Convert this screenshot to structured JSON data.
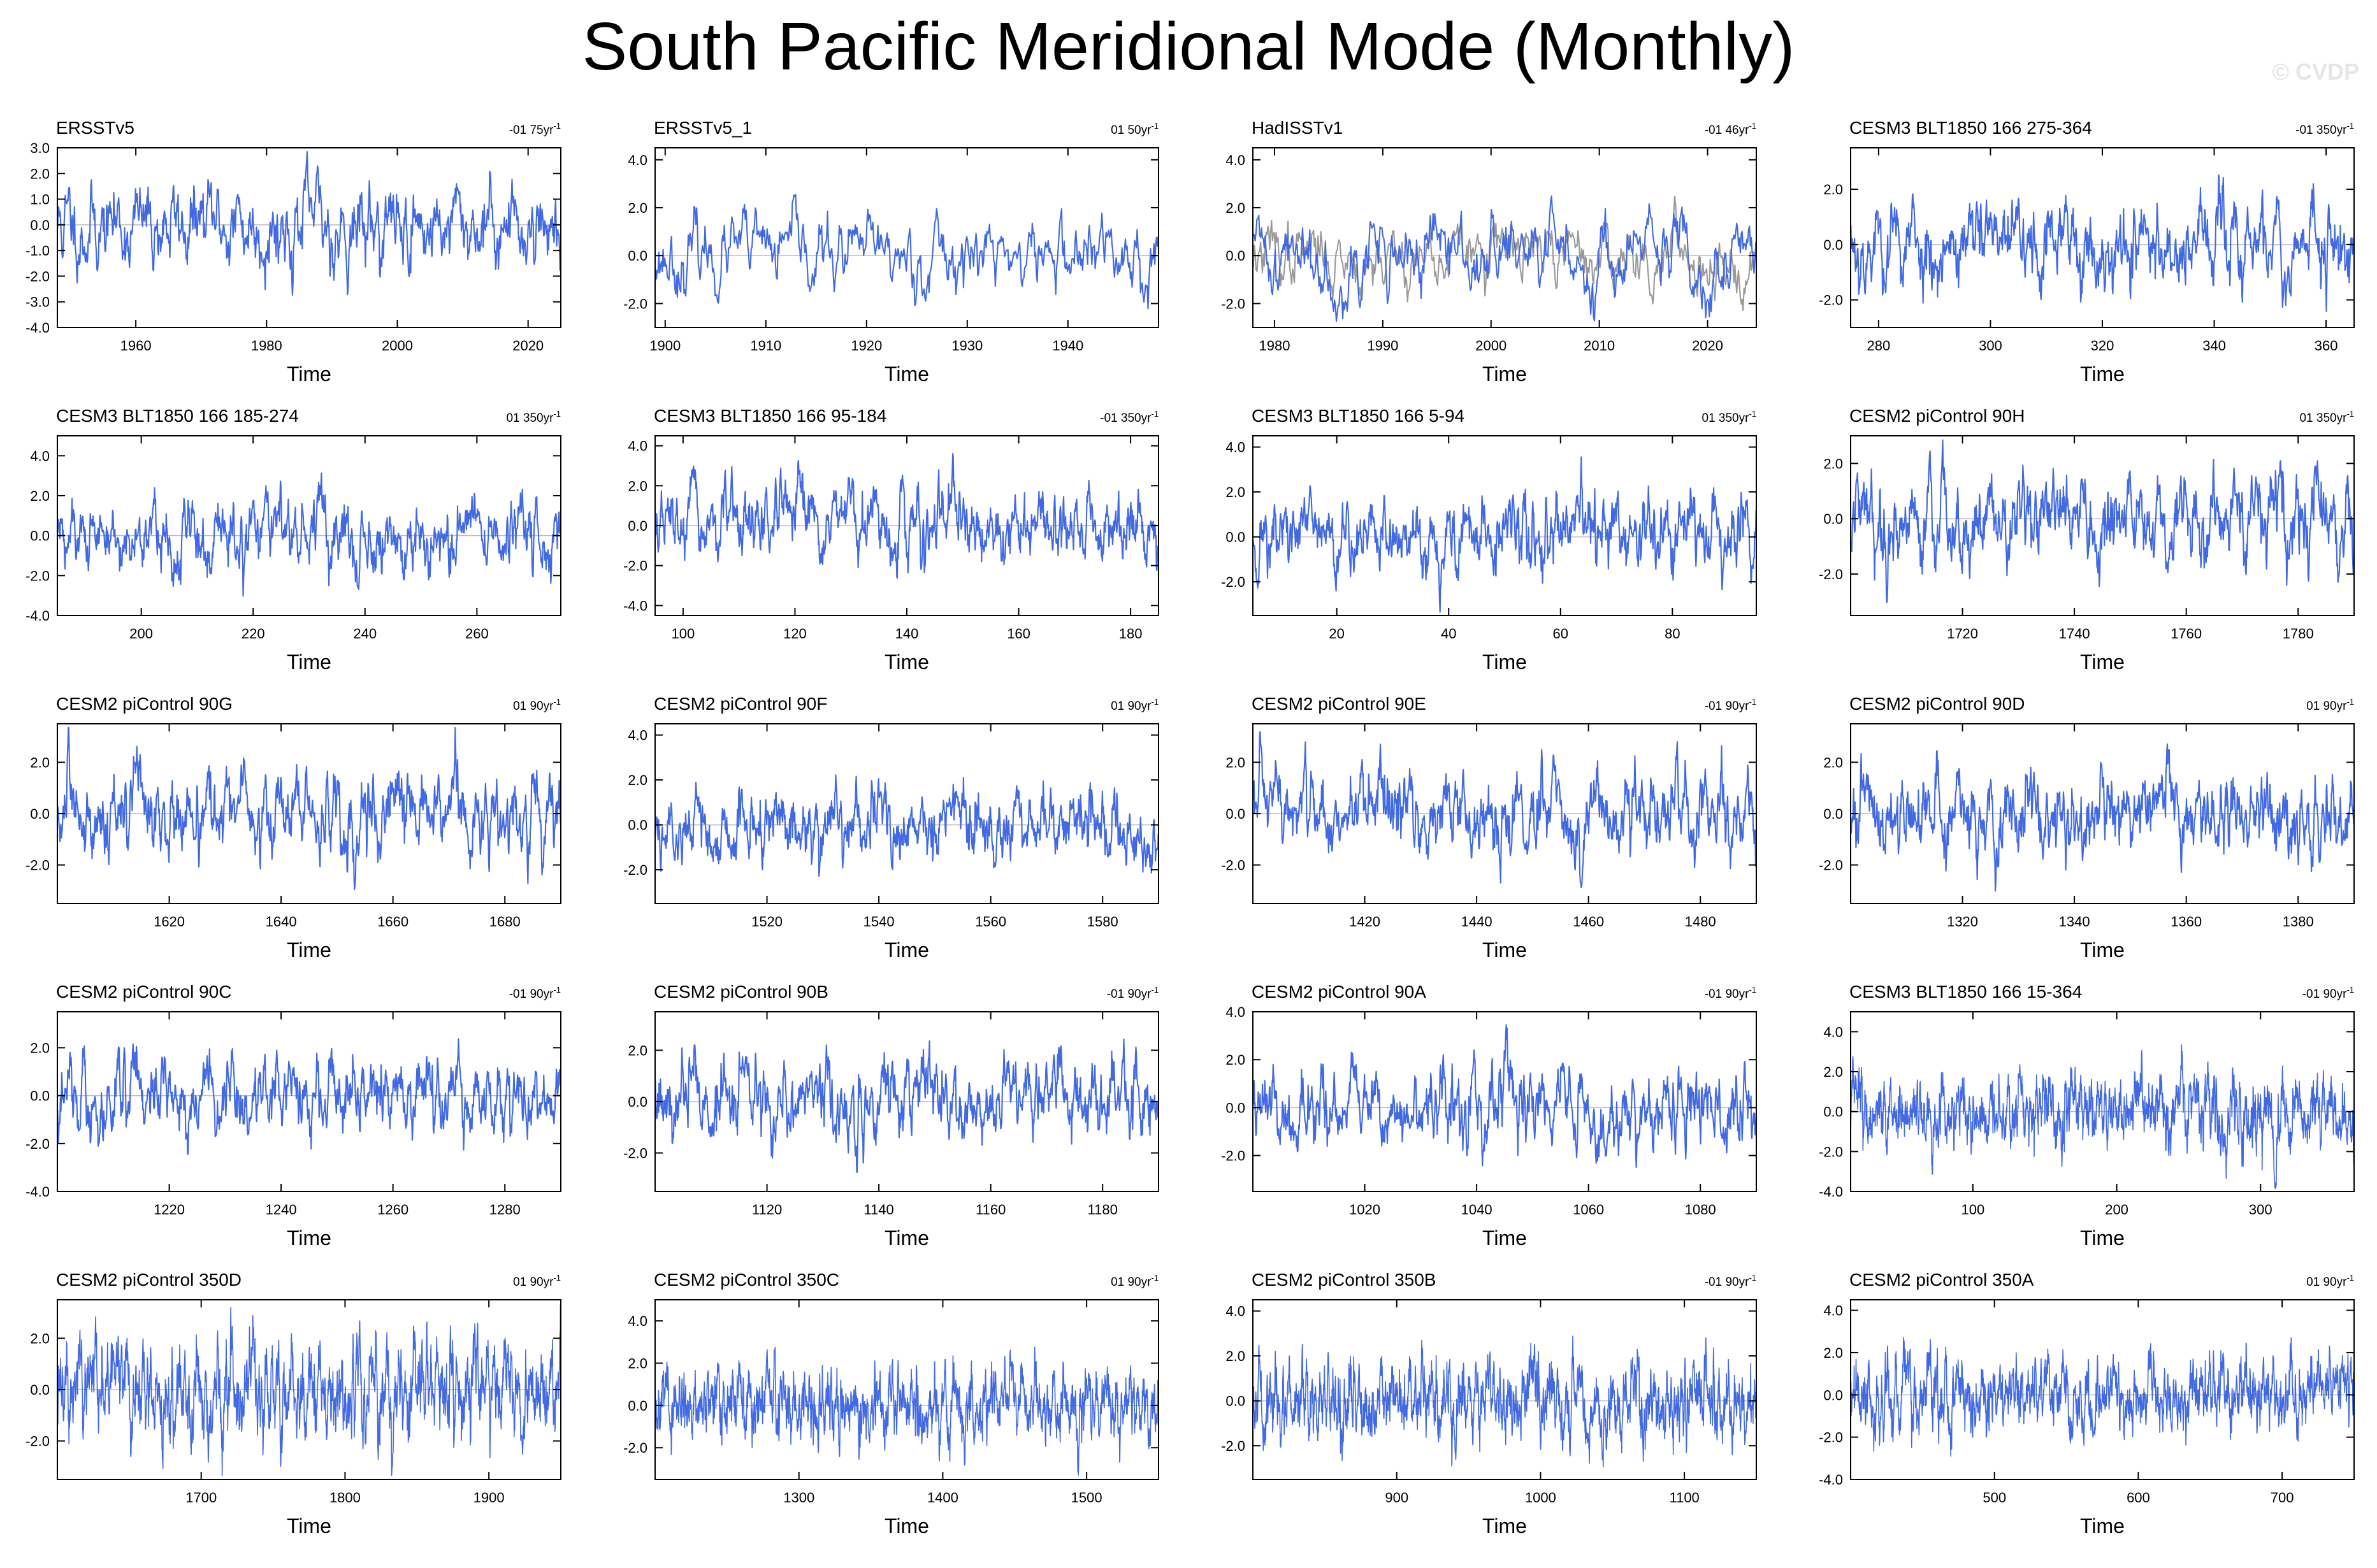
{
  "title": "South Pacific Meridional Mode (Monthly)",
  "credit": "© CVDP",
  "chart_data": [
    {
      "type": "line",
      "panel_title": "ERSSTv5",
      "trend": "-01 75yr",
      "xlabel": "Time",
      "xlim": [
        1948,
        2025
      ],
      "ylim": [
        -4,
        3
      ],
      "xticks": [
        1960,
        1980,
        2000,
        2020
      ],
      "xtick_labels": [
        "1960",
        "1980",
        "2000",
        "2020"
      ],
      "yticks": [
        -4,
        -3,
        -2,
        -1,
        0,
        1,
        2,
        3
      ],
      "ytick_labels": [
        "-4.0",
        "-3.0",
        "-2.0",
        "-1.0",
        "0.0",
        "1.0",
        "2.0",
        "3.0"
      ],
      "series": [
        {
          "color": "#4169e1",
          "amp": 0.95,
          "seed": 11,
          "months": 924
        }
      ]
    },
    {
      "type": "line",
      "panel_title": "ERSSTv5_1",
      "trend": "01 50yr",
      "xlabel": "Time",
      "xlim": [
        1899,
        1949
      ],
      "ylim": [
        -3,
        4.5
      ],
      "xticks": [
        1900,
        1910,
        1920,
        1930,
        1940
      ],
      "xtick_labels": [
        "1900",
        "1910",
        "1920",
        "1930",
        "1940"
      ],
      "yticks": [
        -2,
        0,
        2,
        4
      ],
      "ytick_labels": [
        "-2.0",
        "0.0",
        "2.0",
        "4.0"
      ],
      "series": [
        {
          "color": "#4169e1",
          "amp": 0.9,
          "seed": 23,
          "months": 600
        }
      ]
    },
    {
      "type": "line",
      "panel_title": "HadISSTv1",
      "trend": "-01 46yr",
      "xlabel": "Time",
      "xlim": [
        1978,
        2024.5
      ],
      "ylim": [
        -3,
        4.5
      ],
      "xticks": [
        1980,
        1990,
        2000,
        2010,
        2020
      ],
      "xtick_labels": [
        "1980",
        "1990",
        "2000",
        "2010",
        "2020"
      ],
      "yticks": [
        -2,
        0,
        2,
        4
      ],
      "ytick_labels": [
        "-2.0",
        "0.0",
        "2.0",
        "4.0"
      ],
      "series": [
        {
          "color": "#999999",
          "amp": 0.8,
          "seed": 37,
          "months": 552
        },
        {
          "color": "#4169e1",
          "amp": 1.0,
          "seed": 41,
          "months": 552
        }
      ]
    },
    {
      "type": "line",
      "panel_title": "CESM3 BLT1850 166 275-364",
      "trend": "-01 350yr",
      "xlabel": "Time",
      "xlim": [
        275,
        365
      ],
      "ylim": [
        -3,
        3.5
      ],
      "xticks": [
        280,
        300,
        320,
        340,
        360
      ],
      "xtick_labels": [
        "280",
        "300",
        "320",
        "340",
        "360"
      ],
      "yticks": [
        -2,
        0,
        2
      ],
      "ytick_labels": [
        "-2.0",
        "0.0",
        "2.0"
      ],
      "series": [
        {
          "color": "#4169e1",
          "amp": 0.9,
          "seed": 53,
          "months": 1080
        }
      ]
    },
    {
      "type": "line",
      "panel_title": "CESM3 BLT1850 166 185-274",
      "trend": "01 350yr",
      "xlabel": "Time",
      "xlim": [
        185,
        275
      ],
      "ylim": [
        -4,
        5
      ],
      "xticks": [
        200,
        220,
        240,
        260
      ],
      "xtick_labels": [
        "200",
        "220",
        "240",
        "260"
      ],
      "yticks": [
        -4,
        -2,
        0,
        2,
        4
      ],
      "ytick_labels": [
        "-4.0",
        "-2.0",
        "0.0",
        "2.0",
        "4.0"
      ],
      "series": [
        {
          "color": "#4169e1",
          "amp": 1.0,
          "seed": 61,
          "months": 1080
        }
      ]
    },
    {
      "type": "line",
      "panel_title": "CESM3 BLT1850 166 95-184",
      "trend": "-01 350yr",
      "xlabel": "Time",
      "xlim": [
        95,
        185
      ],
      "ylim": [
        -4.5,
        4.5
      ],
      "xticks": [
        100,
        120,
        140,
        160,
        180
      ],
      "xtick_labels": [
        "100",
        "120",
        "140",
        "160",
        "180"
      ],
      "yticks": [
        -4,
        -2,
        0,
        2,
        4
      ],
      "ytick_labels": [
        "-4.0",
        "-2.0",
        "0.0",
        "2.0",
        "4.0"
      ],
      "series": [
        {
          "color": "#4169e1",
          "amp": 1.0,
          "seed": 67,
          "months": 1080
        }
      ]
    },
    {
      "type": "line",
      "panel_title": "CESM3 BLT1850 166 5-94",
      "trend": "01 350yr",
      "xlabel": "Time",
      "xlim": [
        5,
        95
      ],
      "ylim": [
        -3.5,
        4.5
      ],
      "xticks": [
        20,
        40,
        60,
        80
      ],
      "xtick_labels": [
        "20",
        "40",
        "60",
        "80"
      ],
      "yticks": [
        -2,
        0,
        2,
        4
      ],
      "ytick_labels": [
        "-2.0",
        "0.0",
        "2.0",
        "4.0"
      ],
      "series": [
        {
          "color": "#4169e1",
          "amp": 1.0,
          "seed": 71,
          "months": 1080
        }
      ]
    },
    {
      "type": "line",
      "panel_title": "CESM2 piControl 90H",
      "trend": "01 350yr",
      "xlabel": "Time",
      "xlim": [
        1700,
        1790
      ],
      "ylim": [
        -3.5,
        3
      ],
      "xticks": [
        1720,
        1740,
        1760,
        1780
      ],
      "xtick_labels": [
        "1720",
        "1740",
        "1760",
        "1780"
      ],
      "yticks": [
        -2,
        0,
        2
      ],
      "ytick_labels": [
        "-2.0",
        "0.0",
        "2.0"
      ],
      "series": [
        {
          "color": "#4169e1",
          "amp": 0.95,
          "seed": 79,
          "months": 1080
        }
      ]
    },
    {
      "type": "line",
      "panel_title": "CESM2 piControl 90G",
      "trend": "01 90yr",
      "xlabel": "Time",
      "xlim": [
        1600,
        1690
      ],
      "ylim": [
        -3.5,
        3.5
      ],
      "xticks": [
        1620,
        1640,
        1660,
        1680
      ],
      "xtick_labels": [
        "1620",
        "1640",
        "1660",
        "1680"
      ],
      "yticks": [
        -2,
        0,
        2
      ],
      "ytick_labels": [
        "-2.0",
        "0.0",
        "2.0"
      ],
      "series": [
        {
          "color": "#4169e1",
          "amp": 0.95,
          "seed": 83,
          "months": 1080
        }
      ]
    },
    {
      "type": "line",
      "panel_title": "CESM2 piControl 90F",
      "trend": "01 90yr",
      "xlabel": "Time",
      "xlim": [
        1500,
        1590
      ],
      "ylim": [
        -3.5,
        4.5
      ],
      "xticks": [
        1520,
        1540,
        1560,
        1580
      ],
      "xtick_labels": [
        "1520",
        "1540",
        "1560",
        "1580"
      ],
      "yticks": [
        -2,
        0,
        2,
        4
      ],
      "ytick_labels": [
        "-2.0",
        "0.0",
        "2.0",
        "4.0"
      ],
      "series": [
        {
          "color": "#4169e1",
          "amp": 0.95,
          "seed": 89,
          "months": 1080
        }
      ]
    },
    {
      "type": "line",
      "panel_title": "CESM2 piControl 90E",
      "trend": "-01 90yr",
      "xlabel": "Time",
      "xlim": [
        1400,
        1490
      ],
      "ylim": [
        -3.5,
        3.5
      ],
      "xticks": [
        1420,
        1440,
        1460,
        1480
      ],
      "xtick_labels": [
        "1420",
        "1440",
        "1460",
        "1480"
      ],
      "yticks": [
        -2,
        0,
        2
      ],
      "ytick_labels": [
        "-2.0",
        "0.0",
        "2.0"
      ],
      "series": [
        {
          "color": "#4169e1",
          "amp": 0.95,
          "seed": 97,
          "months": 1080
        }
      ]
    },
    {
      "type": "line",
      "panel_title": "CESM2 piControl 90D",
      "trend": "01 90yr",
      "xlabel": "Time",
      "xlim": [
        1300,
        1390
      ],
      "ylim": [
        -3.5,
        3.5
      ],
      "xticks": [
        1320,
        1340,
        1360,
        1380
      ],
      "xtick_labels": [
        "1320",
        "1340",
        "1360",
        "1380"
      ],
      "yticks": [
        -2,
        0,
        2
      ],
      "ytick_labels": [
        "-2.0",
        "0.0",
        "2.0"
      ],
      "series": [
        {
          "color": "#4169e1",
          "amp": 0.95,
          "seed": 101,
          "months": 1080
        }
      ]
    },
    {
      "type": "line",
      "panel_title": "CESM2 piControl 90C",
      "trend": "-01 90yr",
      "xlabel": "Time",
      "xlim": [
        1200,
        1290
      ],
      "ylim": [
        -4,
        3.5
      ],
      "xticks": [
        1220,
        1240,
        1260,
        1280
      ],
      "xtick_labels": [
        "1220",
        "1240",
        "1260",
        "1280"
      ],
      "yticks": [
        -4,
        -2,
        0,
        2
      ],
      "ytick_labels": [
        "-4.0",
        "-2.0",
        "0.0",
        "2.0"
      ],
      "series": [
        {
          "color": "#4169e1",
          "amp": 0.95,
          "seed": 103,
          "months": 1080
        }
      ]
    },
    {
      "type": "line",
      "panel_title": "CESM2 piControl 90B",
      "trend": "-01 90yr",
      "xlabel": "Time",
      "xlim": [
        1100,
        1190
      ],
      "ylim": [
        -3.5,
        3.5
      ],
      "xticks": [
        1120,
        1140,
        1160,
        1180
      ],
      "xtick_labels": [
        "1120",
        "1140",
        "1160",
        "1180"
      ],
      "yticks": [
        -2,
        0,
        2
      ],
      "ytick_labels": [
        "-2.0",
        "0.0",
        "2.0"
      ],
      "series": [
        {
          "color": "#4169e1",
          "amp": 0.95,
          "seed": 107,
          "months": 1080
        }
      ]
    },
    {
      "type": "line",
      "panel_title": "CESM2 piControl 90A",
      "trend": "-01 90yr",
      "xlabel": "Time",
      "xlim": [
        1000,
        1090
      ],
      "ylim": [
        -3.5,
        4
      ],
      "xticks": [
        1020,
        1040,
        1060,
        1080
      ],
      "xtick_labels": [
        "1020",
        "1040",
        "1060",
        "1080"
      ],
      "yticks": [
        -2,
        0,
        2,
        4
      ],
      "ytick_labels": [
        "-2.0",
        "0.0",
        "2.0",
        "4.0"
      ],
      "series": [
        {
          "color": "#4169e1",
          "amp": 0.95,
          "seed": 109,
          "months": 1080
        }
      ]
    },
    {
      "type": "line",
      "panel_title": "CESM3 BLT1850 166 15-364",
      "trend": "-01 90yr",
      "xlabel": "Time",
      "xlim": [
        15,
        365
      ],
      "ylim": [
        -4,
        5
      ],
      "xticks": [
        100,
        200,
        300
      ],
      "xtick_labels": [
        "100",
        "200",
        "300"
      ],
      "yticks": [
        -4,
        -2,
        0,
        2,
        4
      ],
      "ytick_labels": [
        "-4.0",
        "-2.0",
        "0.0",
        "2.0",
        "4.0"
      ],
      "series": [
        {
          "color": "#4169e1",
          "amp": 1.0,
          "seed": 113,
          "months": 2100
        }
      ]
    },
    {
      "type": "line",
      "panel_title": "CESM2 piControl 350D",
      "trend": "01 90yr",
      "xlabel": "Time",
      "xlim": [
        1600,
        1950
      ],
      "ylim": [
        -3.5,
        3.5
      ],
      "xticks": [
        1700,
        1800,
        1900
      ],
      "xtick_labels": [
        "1700",
        "1800",
        "1900"
      ],
      "yticks": [
        -2,
        0,
        2
      ],
      "ytick_labels": [
        "-2.0",
        "0.0",
        "2.0"
      ],
      "series": [
        {
          "color": "#4169e1",
          "amp": 1.0,
          "seed": 127,
          "months": 2100
        }
      ]
    },
    {
      "type": "line",
      "panel_title": "CESM2 piControl 350C",
      "trend": "01 90yr",
      "xlabel": "Time",
      "xlim": [
        1200,
        1550
      ],
      "ylim": [
        -3.5,
        5
      ],
      "xticks": [
        1300,
        1400,
        1500
      ],
      "xtick_labels": [
        "1300",
        "1400",
        "1500"
      ],
      "yticks": [
        -2,
        0,
        2,
        4
      ],
      "ytick_labels": [
        "-2.0",
        "0.0",
        "2.0",
        "4.0"
      ],
      "series": [
        {
          "color": "#4169e1",
          "amp": 1.0,
          "seed": 131,
          "months": 2100
        }
      ]
    },
    {
      "type": "line",
      "panel_title": "CESM2 piControl 350B",
      "trend": "-01 90yr",
      "xlabel": "Time",
      "xlim": [
        800,
        1150
      ],
      "ylim": [
        -3.5,
        4.5
      ],
      "xticks": [
        900,
        1000,
        1100
      ],
      "xtick_labels": [
        "900",
        "1000",
        "1100"
      ],
      "yticks": [
        -2,
        0,
        2,
        4
      ],
      "ytick_labels": [
        "-2.0",
        "0.0",
        "2.0",
        "4.0"
      ],
      "series": [
        {
          "color": "#4169e1",
          "amp": 1.0,
          "seed": 137,
          "months": 2100
        }
      ]
    },
    {
      "type": "line",
      "panel_title": "CESM2 piControl 350A",
      "trend": "01 90yr",
      "xlabel": "Time",
      "xlim": [
        400,
        750
      ],
      "ylim": [
        -4,
        4.5
      ],
      "xticks": [
        500,
        600,
        700
      ],
      "xtick_labels": [
        "500",
        "600",
        "700"
      ],
      "yticks": [
        -4,
        -2,
        0,
        2,
        4
      ],
      "ytick_labels": [
        "-4.0",
        "-2.0",
        "0.0",
        "2.0",
        "4.0"
      ],
      "series": [
        {
          "color": "#4169e1",
          "amp": 1.0,
          "seed": 139,
          "months": 2100
        }
      ]
    }
  ]
}
